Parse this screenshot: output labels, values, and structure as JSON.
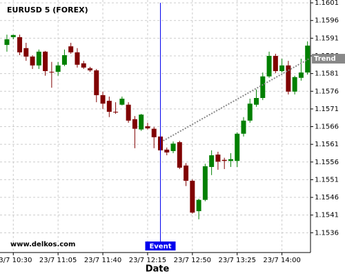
{
  "chart_data": {
    "type": "candlestick",
    "title": "EURUSD 5 (FOREX)",
    "watermark": "www.delkos.com",
    "x_label": "Date",
    "categories": [
      null,
      "23/7 10:30",
      null,
      null,
      null,
      null,
      null,
      null,
      "23/7 11:05",
      null,
      null,
      null,
      null,
      null,
      null,
      "23/7 11:40",
      null,
      null,
      null,
      null,
      null,
      null,
      "23/7 12:15",
      null,
      null,
      null,
      null,
      null,
      null,
      "23/7 12:50",
      null,
      null,
      null,
      null,
      null,
      null,
      "23/7 13:25",
      null,
      null,
      null,
      null,
      null,
      null,
      "23/7 14:00",
      null,
      null,
      null,
      null
    ],
    "open": [
      1.15891,
      1.15913,
      1.15913,
      1.15882,
      1.15858,
      1.15833,
      1.15872,
      1.15815,
      1.15815,
      1.15835,
      1.15887,
      1.1587,
      1.15839,
      1.15825,
      1.15819,
      1.15749,
      1.15733,
      1.15702,
      1.15722,
      1.15722,
      1.15681,
      1.15652,
      1.15661,
      1.15654,
      1.15632,
      1.15595,
      1.15591,
      1.15616,
      1.1555,
      1.15507,
      1.15421,
      1.15453,
      1.15546,
      1.15581,
      1.15566,
      1.15563,
      1.15563,
      1.1564,
      1.15677,
      1.15722,
      1.15741,
      1.15802,
      1.1586,
      1.15817,
      1.15833,
      1.15759,
      1.15798,
      1.15813
    ],
    "high": [
      1.1592,
      1.1592,
      1.1592,
      1.15897,
      1.15862,
      1.15878,
      1.15874,
      1.15843,
      1.15843,
      1.15878,
      1.15897,
      1.15882,
      1.15846,
      1.15829,
      1.15823,
      1.15759,
      1.15745,
      1.15729,
      1.15745,
      1.15729,
      1.1569,
      1.15696,
      1.15671,
      1.15659,
      1.15636,
      1.15601,
      1.15618,
      1.1562,
      1.15557,
      1.15511,
      1.15456,
      1.15555,
      1.15593,
      1.15589,
      1.15572,
      1.15585,
      1.15644,
      1.15687,
      1.15739,
      1.15765,
      1.15813,
      1.15872,
      1.15866,
      1.15852,
      1.15846,
      1.15804,
      1.15852,
      1.15901
    ],
    "low": [
      1.15872,
      1.15907,
      1.15862,
      1.15846,
      1.15823,
      1.15823,
      1.15804,
      1.1577,
      1.15804,
      1.15831,
      1.15866,
      1.15827,
      1.15823,
      1.15815,
      1.15729,
      1.1571,
      1.15687,
      1.15696,
      1.1572,
      1.15671,
      1.15599,
      1.15648,
      1.15652,
      1.15599,
      1.15579,
      1.15579,
      1.15585,
      1.1554,
      1.15492,
      1.15414,
      1.15398,
      1.15449,
      1.15523,
      1.15538,
      1.1554,
      1.15546,
      1.15546,
      1.15632,
      1.15671,
      1.15716,
      1.15735,
      1.15798,
      1.15811,
      1.15813,
      1.15751,
      1.15751,
      1.1579,
      1.15807
    ],
    "close": [
      1.15907,
      1.15919,
      1.1587,
      1.15858,
      1.15833,
      1.15872,
      1.15817,
      1.15813,
      1.15833,
      1.15862,
      1.1587,
      1.15835,
      1.15827,
      1.15819,
      1.15749,
      1.15725,
      1.15702,
      1.157,
      1.15739,
      1.15677,
      1.15654,
      1.15694,
      1.15655,
      1.1563,
      1.15593,
      1.15587,
      1.15612,
      1.15544,
      1.15507,
      1.15417,
      1.15453,
      1.15548,
      1.15579,
      1.15561,
      1.15563,
      1.15568,
      1.1564,
      1.15677,
      1.15725,
      1.15741,
      1.15802,
      1.1586,
      1.15817,
      1.15833,
      1.15759,
      1.158,
      1.15813,
      1.15889
    ],
    "up_color": "#008000",
    "down_color": "#800000",
    "ylim": [
      1.15306,
      1.16018
    ],
    "yticks": [
      1.1601,
      1.1596,
      1.1591,
      1.1586,
      1.1581,
      1.1576,
      1.1571,
      1.1566,
      1.1561,
      1.1556,
      1.1551,
      1.1546,
      1.1541,
      1.1536
    ],
    "grid": true,
    "event": {
      "label": "Event",
      "at": 24,
      "color": "#0000ee"
    },
    "trend": {
      "label": "Trend",
      "values": [
        1.1562,
        1.15852
      ],
      "color": "#888888"
    }
  }
}
